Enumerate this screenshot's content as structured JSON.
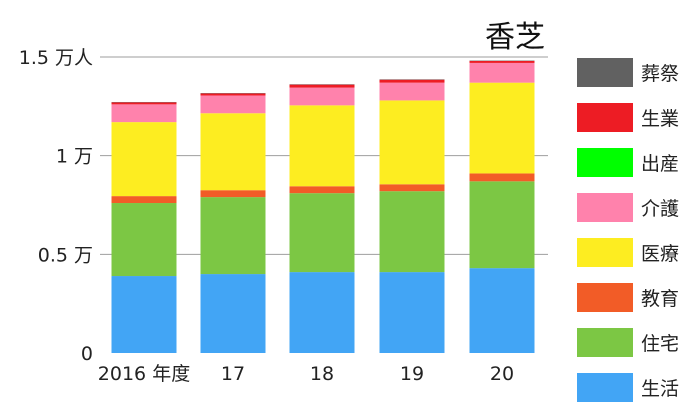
{
  "chart_data": {
    "type": "bar",
    "stacked": true,
    "title": "香芝",
    "categories": [
      "2016 年度",
      "17",
      "18",
      "19",
      "20"
    ],
    "y_ticks": [
      {
        "value": 0,
        "label": "0"
      },
      {
        "value": 0.5,
        "label": "0.5 万"
      },
      {
        "value": 1.0,
        "label": "1 万"
      },
      {
        "value": 1.5,
        "label": "1.5 万人"
      }
    ],
    "ylim": [
      0,
      1.5
    ],
    "unit": "万人",
    "grid": true,
    "legend_position": "right",
    "series": [
      {
        "name": "生活",
        "color": "#42a5f5",
        "values": [
          0.39,
          0.4,
          0.41,
          0.41,
          0.43
        ]
      },
      {
        "name": "住宅",
        "color": "#7cc744",
        "values": [
          0.37,
          0.39,
          0.4,
          0.41,
          0.44
        ]
      },
      {
        "name": "教育",
        "color": "#f25c27",
        "values": [
          0.035,
          0.035,
          0.035,
          0.035,
          0.04
        ]
      },
      {
        "name": "医療",
        "color": "#fded21",
        "values": [
          0.375,
          0.39,
          0.41,
          0.425,
          0.46
        ]
      },
      {
        "name": "介護",
        "color": "#ff82ac",
        "values": [
          0.09,
          0.09,
          0.09,
          0.09,
          0.1
        ]
      },
      {
        "name": "出産",
        "color": "#00ff00",
        "values": [
          0.0,
          0.0,
          0.0,
          0.0,
          0.0
        ]
      },
      {
        "name": "生業",
        "color": "#ed1c24",
        "values": [
          0.01,
          0.01,
          0.015,
          0.015,
          0.01
        ]
      },
      {
        "name": "葬祭",
        "color": "#616161",
        "values": [
          0.002,
          0.002,
          0.002,
          0.002,
          0.002
        ]
      }
    ]
  }
}
